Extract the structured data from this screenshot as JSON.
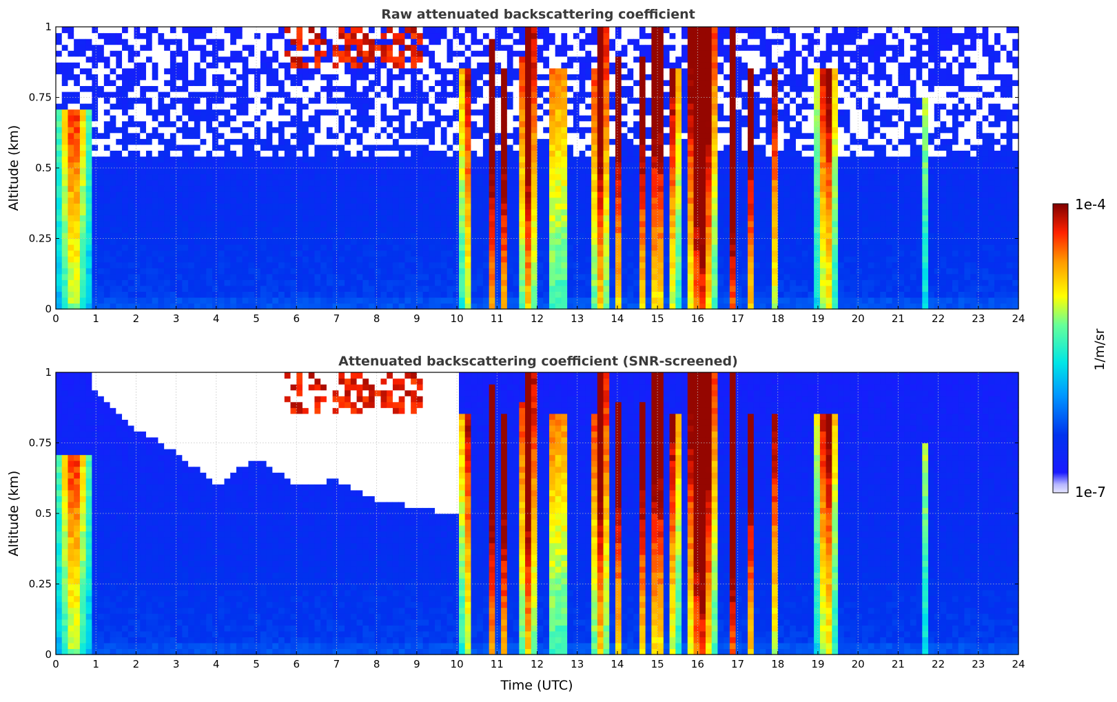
{
  "figure": {
    "colorbar": {
      "min_label": "1e-7",
      "max_label": "1e-4",
      "unit_label": "1/m/sr",
      "colormap": "jet",
      "scale": "log"
    }
  },
  "chart_data": [
    {
      "type": "heatmap",
      "title": "Raw attenuated backscattering coefficient",
      "xlabel": "",
      "ylabel": "Altitude (km)",
      "xlim": [
        0,
        24
      ],
      "ylim": [
        0,
        1
      ],
      "x_ticks": [
        "0",
        "1",
        "2",
        "3",
        "4",
        "5",
        "6",
        "7",
        "8",
        "9",
        "10",
        "11",
        "12",
        "13",
        "14",
        "15",
        "16",
        "17",
        "18",
        "19",
        "20",
        "21",
        "22",
        "23",
        "24"
      ],
      "y_ticks": [
        "0",
        "0.25",
        "0.5",
        "0.75",
        "1"
      ],
      "grid": true,
      "z_scale": "log",
      "z_range": [
        1e-07,
        0.0001
      ],
      "features": {
        "cloud_bands_utc": [
          [
            10.1,
            10.35,
            3.8,
            0.85
          ],
          [
            10.75,
            10.95,
            4.3,
            0.95
          ],
          [
            11.05,
            11.3,
            3.8,
            0.85
          ],
          [
            11.5,
            11.65,
            4.0,
            0.9
          ],
          [
            11.7,
            11.95,
            4.5,
            0.99
          ],
          [
            12.25,
            12.4,
            3.8,
            0.85
          ],
          [
            12.5,
            12.7,
            3.9,
            0.85
          ],
          [
            13.3,
            13.45,
            4.0,
            0.85
          ],
          [
            13.5,
            13.75,
            4.4,
            0.99
          ],
          [
            13.95,
            14.15,
            4.0,
            0.9
          ],
          [
            14.55,
            14.75,
            4.0,
            0.9
          ],
          [
            14.8,
            15.2,
            4.2,
            0.99
          ],
          [
            15.3,
            15.55,
            3.9,
            0.85
          ],
          [
            15.7,
            16.45,
            4.6,
            0.99
          ],
          [
            16.8,
            16.95,
            4.2,
            0.99
          ],
          [
            17.2,
            17.45,
            3.6,
            0.85
          ],
          [
            17.8,
            18.0,
            3.6,
            0.85
          ],
          [
            18.95,
            19.5,
            3.6,
            0.85
          ],
          [
            21.55,
            21.7,
            3.1,
            0.75
          ],
          [
            0.05,
            0.85,
            3.3,
            0.7
          ]
        ],
        "high_signal_cap": {
          "x_range": [
            5.7,
            9.1
          ],
          "z_min": 0.85
        }
      }
    },
    {
      "type": "heatmap",
      "title": "Attenuated backscattering coefficient (SNR-screened)",
      "xlabel": "Time (UTC)",
      "ylabel": "Altitude (km)",
      "xlim": [
        0,
        24
      ],
      "ylim": [
        0,
        1
      ],
      "x_ticks": [
        "0",
        "1",
        "2",
        "3",
        "4",
        "5",
        "6",
        "7",
        "8",
        "9",
        "10",
        "11",
        "12",
        "13",
        "14",
        "15",
        "16",
        "17",
        "18",
        "19",
        "20",
        "21",
        "22",
        "23",
        "24"
      ],
      "y_ticks": [
        "0",
        "0.25",
        "0.5",
        "0.75",
        "1"
      ],
      "grid": true,
      "z_scale": "log",
      "z_range": [
        1e-07,
        0.0001
      ],
      "features": {
        "screened_region": "values below the SNR threshold are blank (white)",
        "screened_top_altitude_km": [
          [
            0.9,
            0.95
          ],
          [
            2.0,
            0.8
          ],
          [
            3.0,
            0.72
          ],
          [
            4.0,
            0.6
          ],
          [
            5.0,
            0.7
          ],
          [
            6.0,
            0.6
          ],
          [
            7.0,
            0.62
          ],
          [
            8.0,
            0.55
          ],
          [
            9.0,
            0.52
          ],
          [
            10.0,
            0.5
          ]
        ]
      }
    }
  ]
}
